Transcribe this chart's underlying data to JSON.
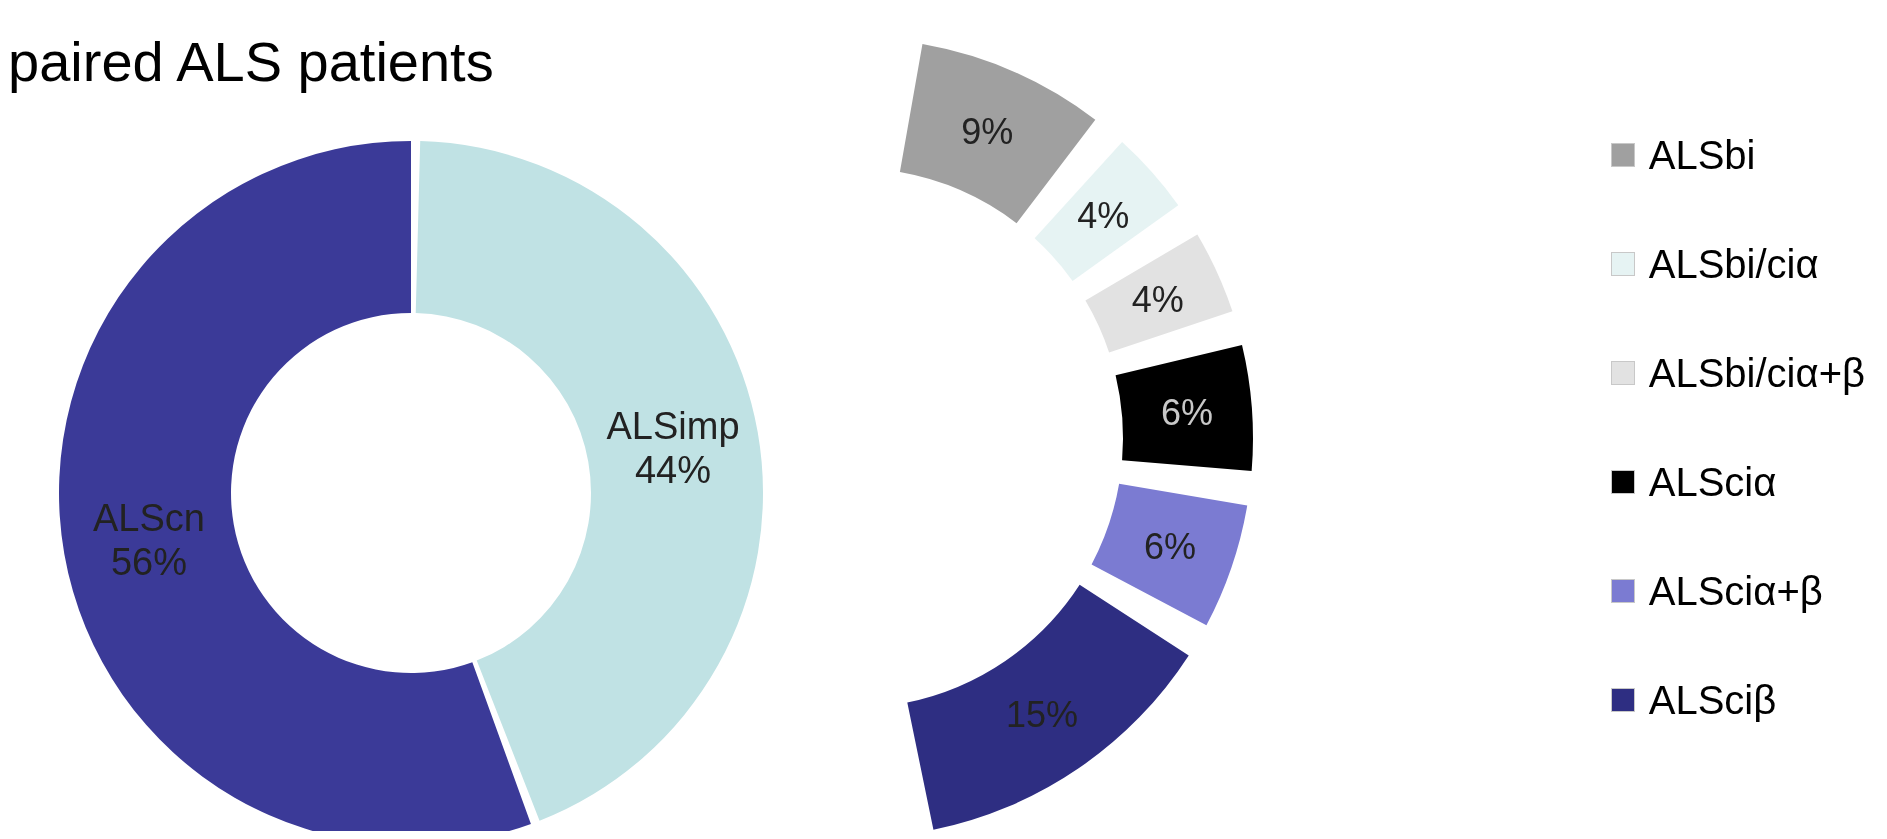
{
  "chart_data": [
    {
      "type": "donut",
      "title": "paired ALS patients",
      "categories": [
        "ALScn",
        "ALSimp"
      ],
      "values": [
        56,
        44
      ],
      "colors": [
        "#3b3a98",
        "#c0e2e4"
      ],
      "value_labels": [
        "56%",
        "44%"
      ],
      "legend": false
    },
    {
      "type": "donut",
      "categories": [
        "ALSbi",
        "ALSbi/ciα",
        "ALSbi/ciα+β",
        "ALSciα",
        "ALSciα+β",
        "ALSciβ"
      ],
      "values": [
        9,
        4,
        4,
        6,
        6,
        15
      ],
      "colors": [
        "#a0a0a0",
        "#e6f3f3",
        "#e2e2e2",
        "#000000",
        "#7b7bd2",
        "#2e2e82"
      ],
      "value_labels": [
        "9%",
        "4%",
        "4%",
        "6%",
        "6%",
        "15%"
      ],
      "legend": "right"
    }
  ]
}
